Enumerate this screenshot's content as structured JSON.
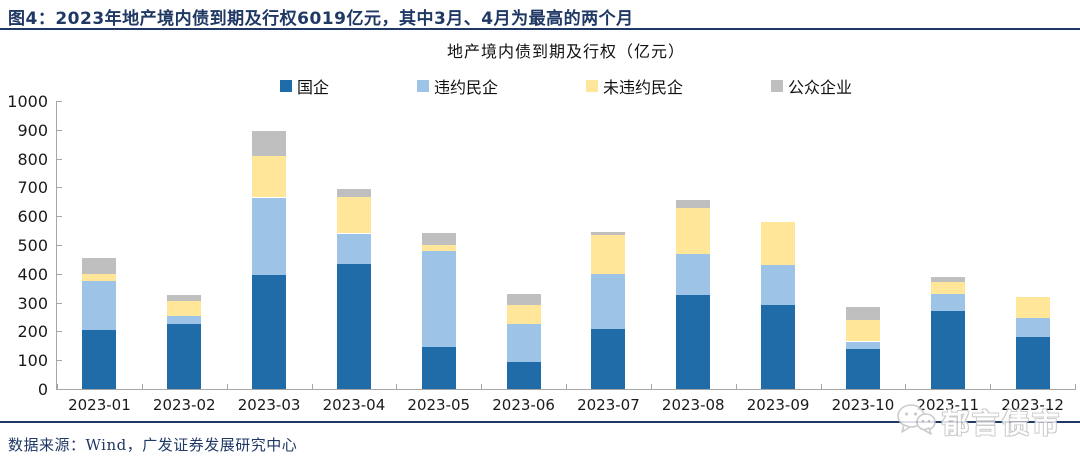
{
  "header": {
    "title": "图4：2023年地产境内债到期及行权6019亿元，其中3月、4月为最高的两个月"
  },
  "chart_data": {
    "type": "bar",
    "stacked": true,
    "title": "地产境内债到期及行权（亿元）",
    "categories": [
      "2023-01",
      "2023-02",
      "2023-03",
      "2023-04",
      "2023-05",
      "2023-06",
      "2023-07",
      "2023-08",
      "2023-09",
      "2023-10",
      "2023-11",
      "2023-12"
    ],
    "series": [
      {
        "name": "国企",
        "color": "#1F6CA8",
        "values": [
          205,
          225,
          395,
          435,
          145,
          95,
          210,
          325,
          290,
          140,
          270,
          180
        ]
      },
      {
        "name": "违约民企",
        "color": "#9DC3E6",
        "values": [
          170,
          30,
          270,
          105,
          335,
          130,
          190,
          145,
          140,
          25,
          60,
          65
        ]
      },
      {
        "name": "未违约民企",
        "color": "#FFE699",
        "values": [
          25,
          50,
          145,
          125,
          20,
          65,
          135,
          160,
          150,
          75,
          40,
          75
        ]
      },
      {
        "name": "公众企业",
        "color": "#BFBFBF",
        "values": [
          55,
          20,
          85,
          30,
          40,
          40,
          10,
          25,
          0,
          45,
          20,
          0
        ]
      }
    ],
    "totals": [
      455,
      325,
      895,
      695,
      540,
      330,
      545,
      655,
      580,
      285,
      390,
      320
    ],
    "ylim": [
      0,
      1000
    ],
    "ytick_step": 100,
    "xlabel": "",
    "ylabel": "",
    "legend_position": "top",
    "grid": false
  },
  "colors": {
    "title_navy": "#1F3864",
    "axis_gray": "#A6A6A6",
    "watermark_gray": "#C4C4C4"
  },
  "footer": {
    "source": "数据来源：Wind，广发证券发展研究中心"
  },
  "watermark": {
    "icon": "wechat-chat-bubbles-icon",
    "text": "郁言债市"
  }
}
